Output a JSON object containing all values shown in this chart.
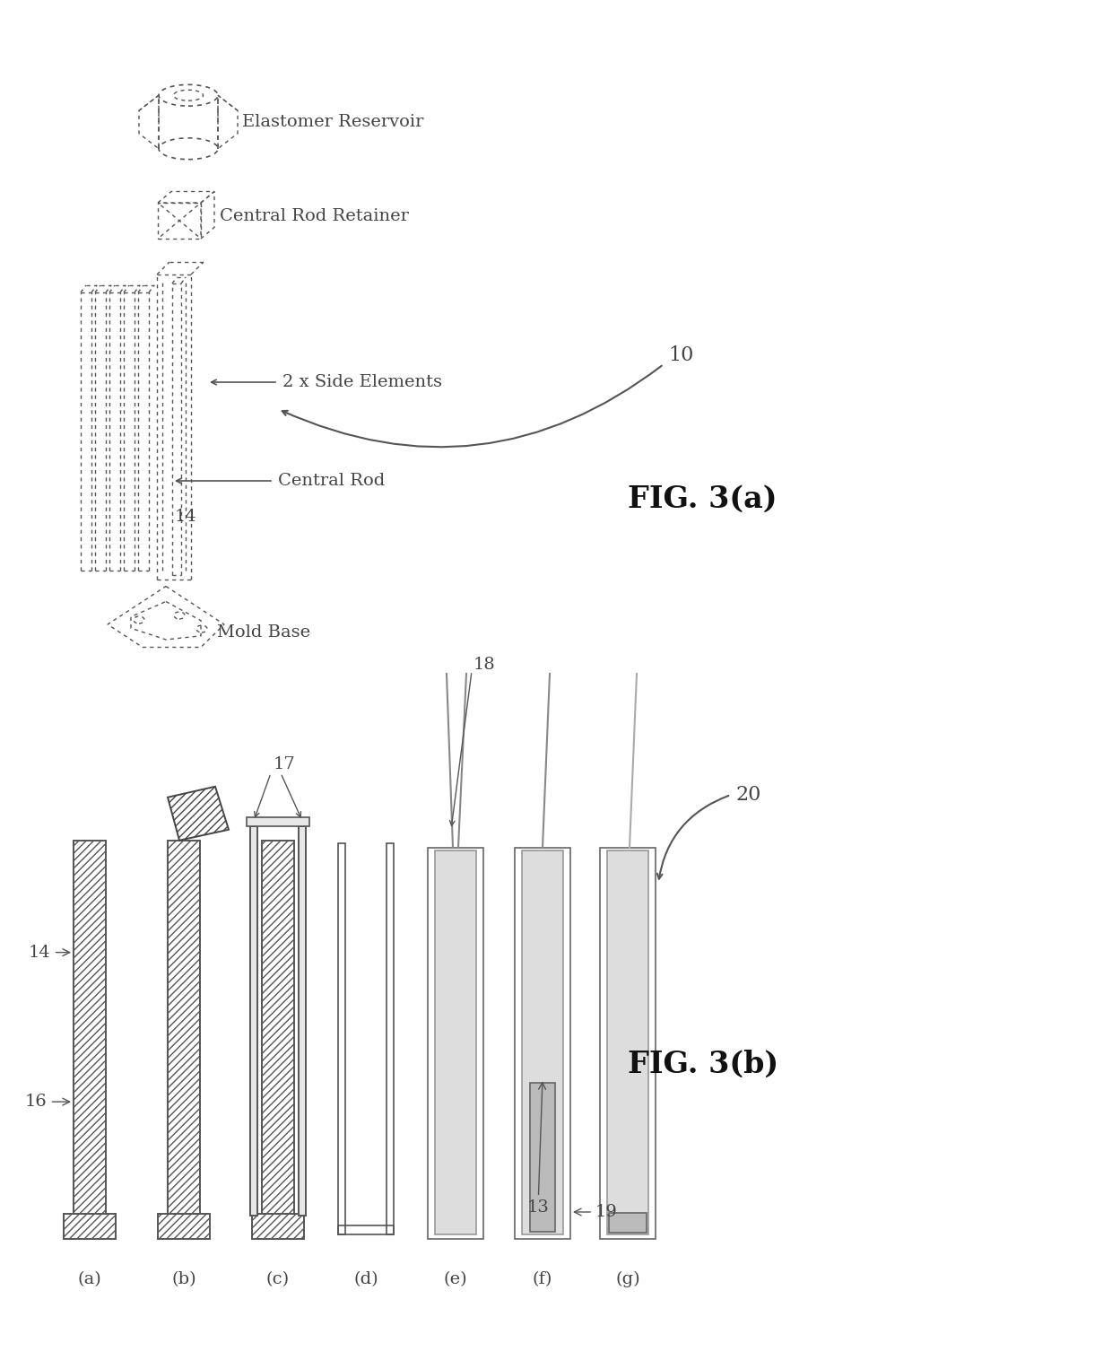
{
  "fig_width": 12.4,
  "fig_height": 15.26,
  "dpi": 100,
  "bg": "#ffffff",
  "lc": "#555555",
  "tc": "#444444",
  "fig3a_label": "FIG. 3(a)",
  "fig3b_label": "FIG. 3(b)",
  "label_10": "10",
  "label_20": "20",
  "label_14": "14",
  "label_16": "16",
  "label_17": "17",
  "label_18": "18",
  "label_13": "13",
  "label_19": "19",
  "er_label": "Elastomer Reservoir",
  "crr_label": "Central Rod Retainer",
  "se_label": "2 x Side Elements",
  "cr_label": "Central Rod",
  "mb_label": "Mold Base",
  "subfig_labels": [
    "(a)",
    "(b)",
    "(c)",
    "(d)",
    "(e)",
    "(f)",
    "(g)"
  ]
}
